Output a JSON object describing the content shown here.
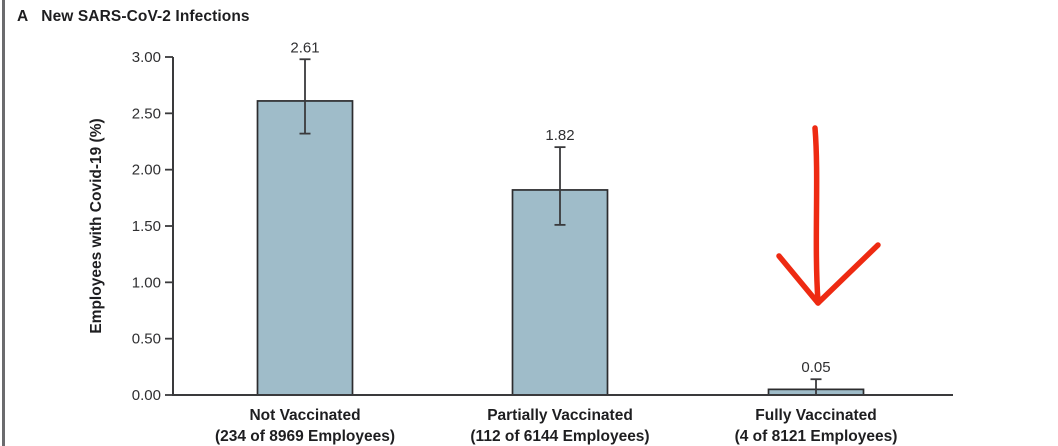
{
  "panel": {
    "label": "A",
    "title": "New SARS-CoV-2 Infections"
  },
  "chart_data": {
    "type": "bar",
    "title": "New SARS-CoV-2 Infections",
    "ylabel": "Employees with Covid-19 (%)",
    "xlabel": "",
    "ylim": [
      0,
      3.0
    ],
    "ytick_values": [
      0,
      0.5,
      1.0,
      1.5,
      2.0,
      2.5,
      3.0
    ],
    "ytick_labels": [
      "0.00",
      "0.50",
      "1.00",
      "1.50",
      "2.00",
      "2.50",
      "3.00"
    ],
    "grid": false,
    "legend": null,
    "categories": [
      {
        "name": "Not Vaccinated",
        "detail": "(234 of 8969 Employees)"
      },
      {
        "name": "Partially Vaccinated",
        "detail": "(112 of 6144 Employees)"
      },
      {
        "name": "Fully Vaccinated",
        "detail": "(4 of 8121 Employees)"
      }
    ],
    "values": [
      2.61,
      1.82,
      0.05
    ],
    "value_labels": [
      "2.61",
      "1.82",
      "0.05"
    ],
    "error_upper": [
      2.98,
      2.2,
      0.14
    ],
    "error_lower": [
      2.32,
      1.51,
      0.0
    ],
    "colors": {
      "bar_fill": "#9fbcc9",
      "bar_stroke": "#2c2c2e",
      "axis": "#3a3a3c",
      "text": "#1e1e20",
      "tick_text": "#2f2f31",
      "annotation_red": "#ee2a12",
      "panel_border": "#6b6b6e"
    },
    "annotation": {
      "type": "hand_drawn_arrow",
      "description": "red arrow pointing down at the Fully Vaccinated bar",
      "color": "#ee2a12",
      "stroke_width": 5.5,
      "segments": [
        [
          [
            815,
            128
          ],
          [
            819,
            178
          ],
          [
            814,
            242
          ],
          [
            818,
            302
          ]
        ],
        [
          [
            779,
            256
          ],
          [
            818,
            303
          ]
        ],
        [
          [
            818,
            303
          ],
          [
            878,
            245
          ]
        ]
      ]
    }
  }
}
